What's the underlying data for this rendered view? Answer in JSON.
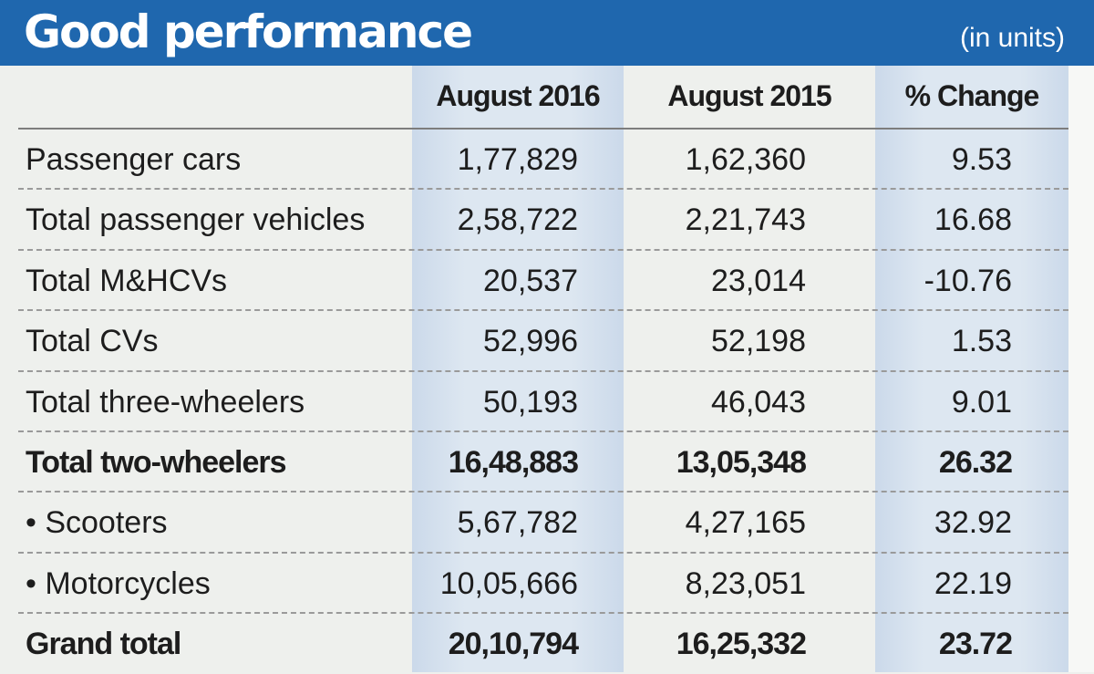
{
  "header": {
    "title": "Good performance",
    "unit_note": "(in units)"
  },
  "colors": {
    "header_bg": "#1f67ae",
    "header_text": "#ffffff",
    "highlight_column": "#dde7f1",
    "page_bg": "#eef0ed"
  },
  "chart_data": {
    "type": "table",
    "title": "Good performance",
    "subtitle": "(in units)",
    "columns": [
      "",
      "August 2016",
      "August 2015",
      "% Change"
    ],
    "rows": [
      {
        "label": "Passenger cars",
        "aug_2016": "1,77,829",
        "aug_2015": "1,62,360",
        "change": "9.53",
        "bold": false
      },
      {
        "label": "Total passenger vehicles",
        "aug_2016": "2,58,722",
        "aug_2015": "2,21,743",
        "change": "16.68",
        "bold": false
      },
      {
        "label": "Total M&HCVs",
        "aug_2016": "20,537",
        "aug_2015": "23,014",
        "change": "-10.76",
        "bold": false
      },
      {
        "label": "Total CVs",
        "aug_2016": "52,996",
        "aug_2015": "52,198",
        "change": "1.53",
        "bold": false
      },
      {
        "label": "Total three-wheelers",
        "aug_2016": "50,193",
        "aug_2015": "46,043",
        "change": "9.01",
        "bold": false
      },
      {
        "label": "Total two-wheelers",
        "aug_2016": "16,48,883",
        "aug_2015": "13,05,348",
        "change": "26.32",
        "bold": true
      },
      {
        "label": "• Scooters",
        "aug_2016": "5,67,782",
        "aug_2015": "4,27,165",
        "change": "32.92",
        "bold": false
      },
      {
        "label": "• Motorcycles",
        "aug_2016": "10,05,666",
        "aug_2015": "8,23,051",
        "change": "22.19",
        "bold": false
      },
      {
        "label": "Grand total",
        "aug_2016": "20,10,794",
        "aug_2015": "16,25,332",
        "change": "23.72",
        "bold": true
      }
    ]
  }
}
